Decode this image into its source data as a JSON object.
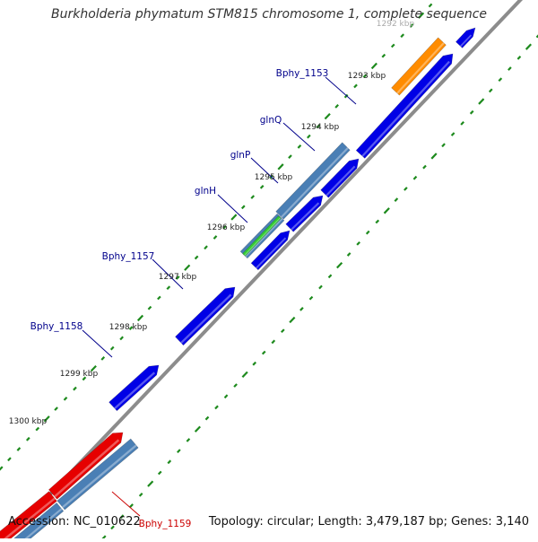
{
  "title": "Burkholderia phymatum STM815 chromosome 1, complete sequence",
  "accession": "Accession: NC_010622",
  "topology": "Topology: circular; Length: 3,479,187 bp; Genes: 3,140",
  "colors": {
    "backbone": "#8c8c8c",
    "ticks": "#1d8a1d",
    "gene_blue": "#0000e6",
    "gene_steel": "#4a7fb5",
    "gene_orange": "#ff8c00",
    "gene_red": "#e60000",
    "gene_green": "#33cc33",
    "label_blue": "#00008b",
    "label_red": "#cc0000"
  },
  "kbp_labels": [
    "1292 kbp",
    "1293 kbp",
    "1294 kbp",
    "1295 kbp",
    "1296 kbp",
    "1297 kbp",
    "1298 kbp",
    "1299 kbp",
    "1300 kbp"
  ],
  "gene_labels": [
    {
      "name": "Bphy_1153",
      "color": "label_blue"
    },
    {
      "name": "glnQ",
      "color": "label_blue"
    },
    {
      "name": "glnP",
      "color": "label_blue"
    },
    {
      "name": "glnH",
      "color": "label_blue"
    },
    {
      "name": "Bphy_1157",
      "color": "label_blue"
    },
    {
      "name": "Bphy_1158",
      "color": "label_blue"
    },
    {
      "name": "Bphy_1159",
      "color": "label_red"
    }
  ]
}
